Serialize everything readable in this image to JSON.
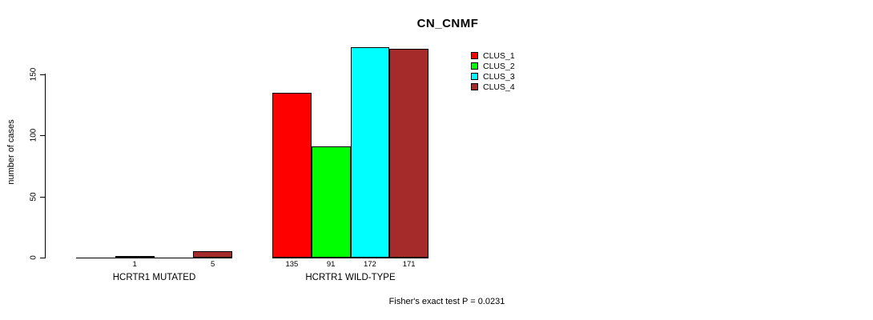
{
  "title": "CN_CNMF",
  "footer": "Fisher's exact test P = 0.0231",
  "y_axis": {
    "label": "number of cases",
    "ticks": [
      0,
      50,
      100,
      150
    ]
  },
  "legend": {
    "items": [
      {
        "label": "CLUS_1",
        "color": "#FF0000"
      },
      {
        "label": "CLUS_2",
        "color": "#00FF00"
      },
      {
        "label": "CLUS_3",
        "color": "#00FFFF"
      },
      {
        "label": "CLUS_4",
        "color": "#A52A2A"
      }
    ]
  },
  "chart_data": {
    "type": "bar",
    "title": "CN_CNMF",
    "xlabel": "",
    "ylabel": "number of cases",
    "ylim": [
      0,
      172
    ],
    "yticks": [
      0,
      50,
      100,
      150
    ],
    "grid": false,
    "legend_position": "top-right",
    "groups": [
      "HCRTR1 MUTATED",
      "HCRTR1 WILD-TYPE"
    ],
    "series": [
      {
        "name": "CLUS_1",
        "color": "#FF0000",
        "values": [
          0,
          135
        ]
      },
      {
        "name": "CLUS_2",
        "color": "#00FF00",
        "values": [
          1,
          91
        ]
      },
      {
        "name": "CLUS_3",
        "color": "#00FFFF",
        "values": [
          0,
          172
        ]
      },
      {
        "name": "CLUS_4",
        "color": "#A52A2A",
        "values": [
          5,
          171
        ]
      }
    ],
    "bar_value_labels": "shown under each non-zero bar",
    "annotation": "Fisher's exact test P = 0.0231"
  }
}
